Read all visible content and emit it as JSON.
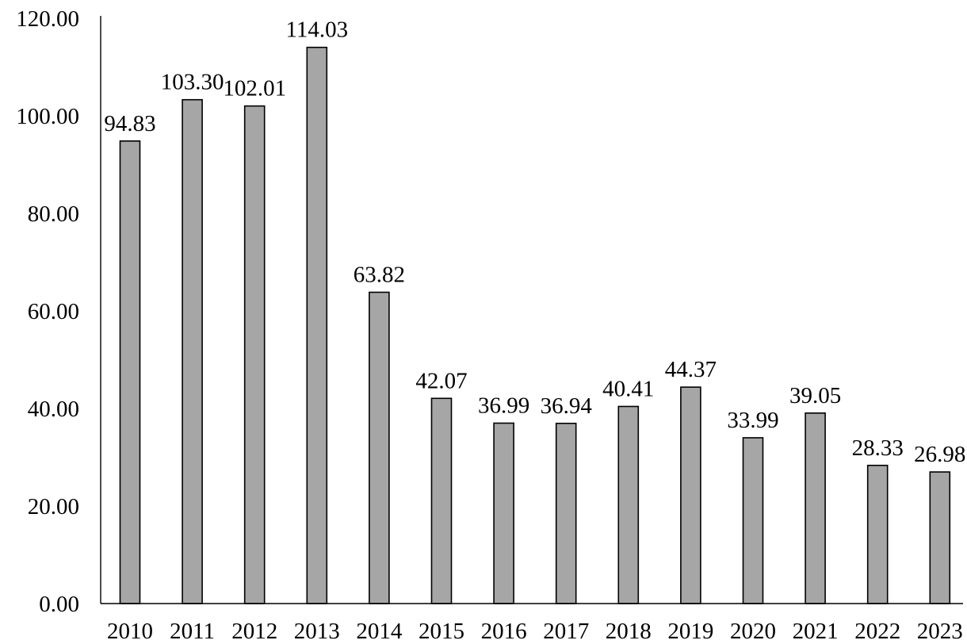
{
  "chart_data": {
    "type": "bar",
    "categories": [
      "2010",
      "2011",
      "2012",
      "2013",
      "2014",
      "2015",
      "2016",
      "2017",
      "2018",
      "2019",
      "2020",
      "2021",
      "2022",
      "2023"
    ],
    "values": [
      94.83,
      103.3,
      102.01,
      114.03,
      63.82,
      42.07,
      36.99,
      36.94,
      40.41,
      44.37,
      33.99,
      39.05,
      28.33,
      26.98
    ],
    "value_labels": [
      "94.83",
      "103.30",
      "102.01",
      "114.03",
      "63.82",
      "42.07",
      "36.99",
      "36.94",
      "40.41",
      "44.37",
      "33.99",
      "39.05",
      "28.33",
      "26.98"
    ],
    "yticks": [
      0,
      20,
      40,
      60,
      80,
      100,
      120
    ],
    "ytick_labels": [
      "0.00",
      "20.00",
      "40.00",
      "60.00",
      "80.00",
      "100.00",
      "120.00"
    ],
    "ylim": [
      0,
      120
    ],
    "grid": false,
    "legend": "none",
    "bar_color": "#a6a6a6",
    "edge_color": "#000000",
    "title": "",
    "xlabel": "",
    "ylabel": ""
  }
}
